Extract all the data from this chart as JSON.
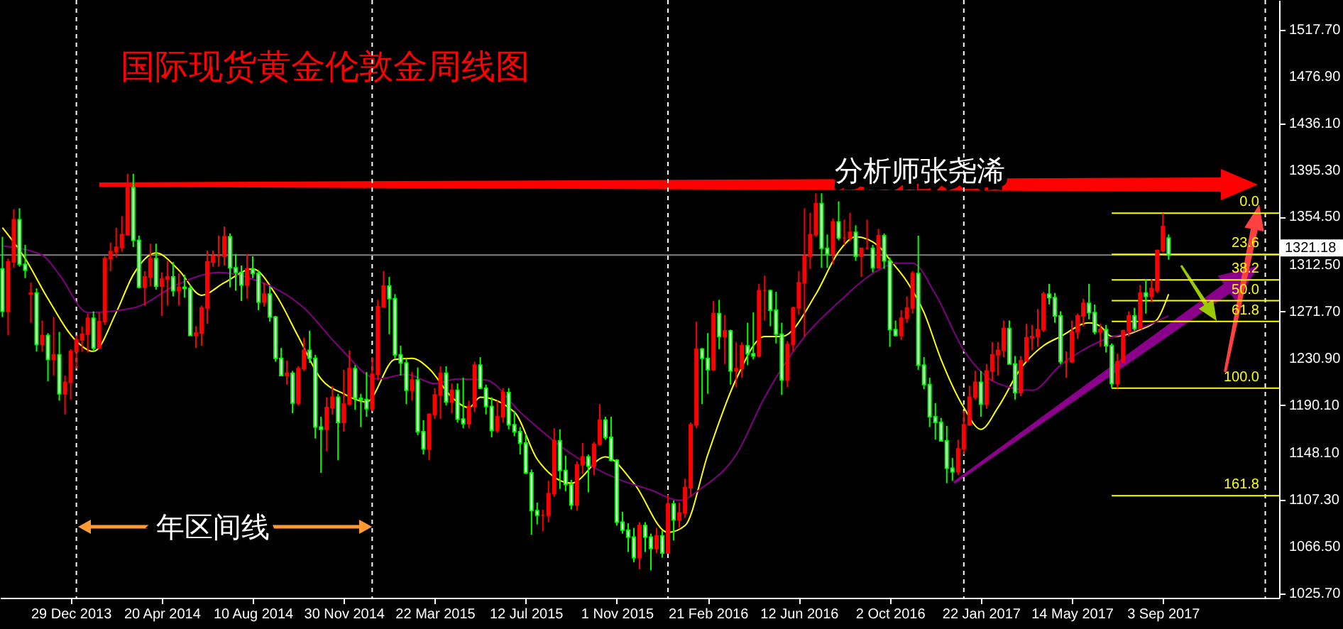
{
  "chart_data": {
    "type": "candlestick",
    "title": "国际现货黄金伦敦金周线图",
    "annotations": [
      "分析师张尧浠",
      "年区间线",
      {
        "text": "0.0",
        "y": 1357.6
      },
      {
        "text": "23.6",
        "y": 1321.7
      },
      {
        "text": "38.2",
        "y": 1299.5
      },
      {
        "text": "50.0",
        "y": 1281.3
      },
      {
        "text": "61.8",
        "y": 1263.2
      },
      {
        "text": "100.0",
        "y": 1205.0
      },
      {
        "text": "161.8",
        "y": 1111.0
      }
    ],
    "x": [
      "2013-10-06",
      "2013-10-13",
      "2013-10-20",
      "2013-10-27",
      "2013-11-03",
      "2013-11-10",
      "2013-11-17",
      "2013-11-24",
      "2013-12-01",
      "2013-12-08",
      "2013-12-15",
      "2013-12-22",
      "2013-12-29",
      "2014-01-05",
      "2014-01-12",
      "2014-01-19",
      "2014-01-26",
      "2014-02-02",
      "2014-02-09",
      "2014-02-16",
      "2014-02-23",
      "2014-03-02",
      "2014-03-09",
      "2014-03-16",
      "2014-03-23",
      "2014-03-30",
      "2014-04-06",
      "2014-04-13",
      "2014-04-20",
      "2014-04-27",
      "2014-05-04",
      "2014-05-11",
      "2014-05-18",
      "2014-05-25",
      "2014-06-01",
      "2014-06-08",
      "2014-06-15",
      "2014-06-22",
      "2014-06-29",
      "2014-07-06",
      "2014-07-13",
      "2014-07-20",
      "2014-07-27",
      "2014-08-03",
      "2014-08-10",
      "2014-08-17",
      "2014-08-24",
      "2014-08-31",
      "2014-09-07",
      "2014-09-14",
      "2014-09-21",
      "2014-09-28",
      "2014-10-05",
      "2014-10-12",
      "2014-10-19",
      "2014-10-26",
      "2014-11-02",
      "2014-11-09",
      "2014-11-16",
      "2014-11-23",
      "2014-11-30",
      "2014-12-07",
      "2014-12-14",
      "2014-12-21",
      "2014-12-28",
      "2015-01-04",
      "2015-01-11",
      "2015-01-18",
      "2015-01-25",
      "2015-02-01",
      "2015-02-08",
      "2015-02-15",
      "2015-02-22",
      "2015-03-01",
      "2015-03-08",
      "2015-03-15",
      "2015-03-22",
      "2015-03-29",
      "2015-04-05",
      "2015-04-12",
      "2015-04-19",
      "2015-04-26",
      "2015-05-03",
      "2015-05-10",
      "2015-05-17",
      "2015-05-24",
      "2015-05-31",
      "2015-06-07",
      "2015-06-14",
      "2015-06-21",
      "2015-06-28",
      "2015-07-05",
      "2015-07-12",
      "2015-07-19",
      "2015-07-26",
      "2015-08-02",
      "2015-08-09",
      "2015-08-16",
      "2015-08-23",
      "2015-08-30",
      "2015-09-06",
      "2015-09-13",
      "2015-09-20",
      "2015-09-27",
      "2015-10-04",
      "2015-10-11",
      "2015-10-18",
      "2015-10-25",
      "2015-11-01",
      "2015-11-08",
      "2015-11-15",
      "2015-11-22",
      "2015-11-29",
      "2015-12-06",
      "2015-12-13",
      "2015-12-20",
      "2015-12-27",
      "2016-01-03",
      "2016-01-10",
      "2016-01-17",
      "2016-01-24",
      "2016-01-31",
      "2016-02-07",
      "2016-02-14",
      "2016-02-21",
      "2016-02-28",
      "2016-03-06",
      "2016-03-13",
      "2016-03-20",
      "2016-03-27",
      "2016-04-03",
      "2016-04-10",
      "2016-04-17",
      "2016-04-24",
      "2016-05-01",
      "2016-05-08",
      "2016-05-15",
      "2016-05-22",
      "2016-05-29",
      "2016-06-05",
      "2016-06-12",
      "2016-06-19",
      "2016-06-26",
      "2016-07-03",
      "2016-07-10",
      "2016-07-17",
      "2016-07-24",
      "2016-07-31",
      "2016-08-07",
      "2016-08-14",
      "2016-08-21",
      "2016-08-28",
      "2016-09-04",
      "2016-09-11",
      "2016-09-18",
      "2016-09-25",
      "2016-10-02",
      "2016-10-09",
      "2016-10-16",
      "2016-10-23",
      "2016-10-30",
      "2016-11-06",
      "2016-11-13",
      "2016-11-20",
      "2016-11-27",
      "2016-12-04",
      "2016-12-11",
      "2016-12-18",
      "2016-12-25",
      "2017-01-01",
      "2017-01-08",
      "2017-01-15",
      "2017-01-22",
      "2017-01-29",
      "2017-02-05",
      "2017-02-12",
      "2017-02-19",
      "2017-02-26",
      "2017-03-05",
      "2017-03-12",
      "2017-03-19",
      "2017-03-26",
      "2017-04-02",
      "2017-04-09",
      "2017-04-16",
      "2017-04-23",
      "2017-04-30",
      "2017-05-07",
      "2017-05-14",
      "2017-05-21",
      "2017-05-28",
      "2017-06-04",
      "2017-06-11",
      "2017-06-18",
      "2017-06-25",
      "2017-07-02",
      "2017-07-09",
      "2017-07-16",
      "2017-07-23",
      "2017-07-30",
      "2017-08-06",
      "2017-08-13",
      "2017-08-20",
      "2017-08-27",
      "2017-09-03",
      "2017-09-10"
    ],
    "ohlc": [
      [
        1309,
        1337,
        1267,
        1272
      ],
      [
        1272,
        1318,
        1251,
        1315
      ],
      [
        1315,
        1361,
        1310,
        1352
      ],
      [
        1352,
        1362,
        1311,
        1313
      ],
      [
        1313,
        1330,
        1301,
        1308
      ],
      [
        1287,
        1297,
        1262,
        1288
      ],
      [
        1288,
        1292,
        1237,
        1243
      ],
      [
        1243,
        1264,
        1237,
        1251
      ],
      [
        1251,
        1253,
        1211,
        1230
      ],
      [
        1230,
        1267,
        1216,
        1234
      ],
      [
        1234,
        1254,
        1194,
        1200
      ],
      [
        1200,
        1216,
        1182,
        1210
      ],
      [
        1210,
        1239,
        1195,
        1237
      ],
      [
        1237,
        1251,
        1222,
        1247
      ],
      [
        1247,
        1259,
        1237,
        1252
      ],
      [
        1252,
        1270,
        1236,
        1266
      ],
      [
        1266,
        1272,
        1237,
        1240
      ],
      [
        1240,
        1271,
        1240,
        1263
      ],
      [
        1263,
        1320,
        1260,
        1318
      ],
      [
        1318,
        1332,
        1307,
        1324
      ],
      [
        1324,
        1345,
        1319,
        1328
      ],
      [
        1328,
        1355,
        1324,
        1339
      ],
      [
        1339,
        1392,
        1338,
        1380
      ],
      [
        1380,
        1392,
        1328,
        1334
      ],
      [
        1334,
        1338,
        1292,
        1293
      ],
      [
        1293,
        1307,
        1277,
        1302
      ],
      [
        1302,
        1331,
        1294,
        1318
      ],
      [
        1318,
        1331,
        1291,
        1294
      ],
      [
        1294,
        1306,
        1268,
        1300
      ],
      [
        1300,
        1316,
        1277,
        1302
      ],
      [
        1302,
        1315,
        1285,
        1290
      ],
      [
        1290,
        1305,
        1277,
        1293
      ],
      [
        1293,
        1304,
        1284,
        1292
      ],
      [
        1292,
        1295,
        1251,
        1251
      ],
      [
        1251,
        1259,
        1240,
        1253
      ],
      [
        1253,
        1277,
        1242,
        1275
      ],
      [
        1275,
        1325,
        1261,
        1315
      ],
      [
        1315,
        1325,
        1311,
        1320
      ],
      [
        1320,
        1338,
        1311,
        1320
      ],
      [
        1320,
        1346,
        1312,
        1337
      ],
      [
        1337,
        1340,
        1293,
        1310
      ],
      [
        1310,
        1322,
        1290,
        1306
      ],
      [
        1306,
        1312,
        1281,
        1295
      ],
      [
        1295,
        1322,
        1283,
        1309
      ],
      [
        1309,
        1320,
        1301,
        1305
      ],
      [
        1305,
        1308,
        1273,
        1280
      ],
      [
        1280,
        1297,
        1276,
        1287
      ],
      [
        1287,
        1294,
        1263,
        1267
      ],
      [
        1267,
        1268,
        1228,
        1231
      ],
      [
        1231,
        1240,
        1216,
        1216
      ],
      [
        1216,
        1229,
        1208,
        1218
      ],
      [
        1218,
        1220,
        1183,
        1192
      ],
      [
        1192,
        1224,
        1190,
        1222
      ],
      [
        1222,
        1249,
        1220,
        1238
      ],
      [
        1238,
        1255,
        1227,
        1231
      ],
      [
        1231,
        1234,
        1161,
        1171
      ],
      [
        1171,
        1180,
        1131,
        1169
      ],
      [
        1169,
        1197,
        1150,
        1188
      ],
      [
        1188,
        1207,
        1182,
        1197
      ],
      [
        1197,
        1200,
        1142,
        1175
      ],
      [
        1175,
        1221,
        1167,
        1191
      ],
      [
        1191,
        1238,
        1190,
        1222
      ],
      [
        1222,
        1225,
        1186,
        1196
      ],
      [
        1196,
        1200,
        1171,
        1195
      ],
      [
        1195,
        1219,
        1180,
        1187
      ],
      [
        1187,
        1232,
        1185,
        1217
      ],
      [
        1217,
        1282,
        1212,
        1276
      ],
      [
        1276,
        1307,
        1276,
        1294
      ],
      [
        1294,
        1302,
        1252,
        1283
      ],
      [
        1283,
        1287,
        1231,
        1234
      ],
      [
        1234,
        1242,
        1216,
        1227
      ],
      [
        1227,
        1231,
        1191,
        1203
      ],
      [
        1203,
        1219,
        1194,
        1212
      ],
      [
        1212,
        1223,
        1164,
        1167
      ],
      [
        1167,
        1177,
        1147,
        1152
      ],
      [
        1152,
        1183,
        1142,
        1182
      ],
      [
        1182,
        1205,
        1178,
        1199
      ],
      [
        1199,
        1224,
        1178,
        1218
      ],
      [
        1218,
        1224,
        1190,
        1193
      ],
      [
        1193,
        1209,
        1183,
        1203
      ],
      [
        1203,
        1209,
        1175,
        1178
      ],
      [
        1178,
        1214,
        1170,
        1174
      ],
      [
        1174,
        1194,
        1170,
        1189
      ],
      [
        1189,
        1228,
        1184,
        1225
      ],
      [
        1225,
        1232,
        1204,
        1205
      ],
      [
        1205,
        1208,
        1182,
        1189
      ],
      [
        1189,
        1197,
        1162,
        1168
      ],
      [
        1168,
        1194,
        1166,
        1180
      ],
      [
        1180,
        1205,
        1175,
        1201
      ],
      [
        1201,
        1205,
        1169,
        1173
      ],
      [
        1173,
        1185,
        1163,
        1167
      ],
      [
        1167,
        1171,
        1147,
        1157
      ],
      [
        1157,
        1165,
        1130,
        1131
      ],
      [
        1131,
        1134,
        1077,
        1098
      ],
      [
        1098,
        1105,
        1086,
        1094
      ],
      [
        1094,
        1099,
        1080,
        1094
      ],
      [
        1094,
        1124,
        1088,
        1113
      ],
      [
        1113,
        1170,
        1110,
        1159
      ],
      [
        1159,
        1169,
        1117,
        1133
      ],
      [
        1133,
        1146,
        1115,
        1121
      ],
      [
        1121,
        1125,
        1099,
        1103
      ],
      [
        1103,
        1141,
        1098,
        1138
      ],
      [
        1138,
        1157,
        1130,
        1145
      ],
      [
        1145,
        1147,
        1114,
        1137
      ],
      [
        1137,
        1158,
        1129,
        1156
      ],
      [
        1156,
        1191,
        1155,
        1177
      ],
      [
        1177,
        1180,
        1160,
        1162
      ],
      [
        1162,
        1180,
        1141,
        1142
      ],
      [
        1142,
        1143,
        1085,
        1088
      ],
      [
        1088,
        1097,
        1078,
        1081
      ],
      [
        1081,
        1087,
        1062,
        1075
      ],
      [
        1075,
        1083,
        1053,
        1057
      ],
      [
        1057,
        1088,
        1047,
        1085
      ],
      [
        1085,
        1088,
        1062,
        1075
      ],
      [
        1075,
        1078,
        1046,
        1065
      ],
      [
        1065,
        1083,
        1061,
        1076
      ],
      [
        1076,
        1081,
        1057,
        1061
      ],
      [
        1061,
        1112,
        1061,
        1104
      ],
      [
        1104,
        1107,
        1072,
        1090
      ],
      [
        1090,
        1105,
        1083,
        1096
      ],
      [
        1096,
        1126,
        1092,
        1118
      ],
      [
        1118,
        1175,
        1110,
        1173
      ],
      [
        1173,
        1263,
        1170,
        1239
      ],
      [
        1239,
        1240,
        1191,
        1231
      ],
      [
        1231,
        1253,
        1200,
        1221
      ],
      [
        1221,
        1281,
        1220,
        1270
      ],
      [
        1270,
        1282,
        1239,
        1250
      ],
      [
        1250,
        1269,
        1226,
        1255
      ],
      [
        1255,
        1256,
        1208,
        1220
      ],
      [
        1220,
        1245,
        1206,
        1222
      ],
      [
        1222,
        1245,
        1214,
        1242
      ],
      [
        1242,
        1262,
        1225,
        1235
      ],
      [
        1235,
        1271,
        1230,
        1233
      ],
      [
        1233,
        1296,
        1232,
        1290
      ],
      [
        1290,
        1303,
        1264,
        1290
      ],
      [
        1290,
        1291,
        1259,
        1273
      ],
      [
        1273,
        1289,
        1244,
        1252
      ],
      [
        1252,
        1262,
        1199,
        1212
      ],
      [
        1212,
        1246,
        1206,
        1243
      ],
      [
        1243,
        1276,
        1237,
        1275
      ],
      [
        1275,
        1307,
        1269,
        1297
      ],
      [
        1297,
        1362,
        1250,
        1320
      ],
      [
        1320,
        1358,
        1309,
        1339
      ],
      [
        1339,
        1375,
        1337,
        1366
      ],
      [
        1366,
        1375,
        1310,
        1327
      ],
      [
        1327,
        1339,
        1310,
        1322
      ],
      [
        1322,
        1353,
        1313,
        1350
      ],
      [
        1350,
        1368,
        1334,
        1336
      ],
      [
        1336,
        1352,
        1330,
        1336
      ],
      [
        1336,
        1358,
        1333,
        1341
      ],
      [
        1341,
        1347,
        1316,
        1320
      ],
      [
        1320,
        1327,
        1302,
        1327
      ],
      [
        1327,
        1352,
        1326,
        1327
      ],
      [
        1327,
        1330,
        1306,
        1310
      ],
      [
        1310,
        1344,
        1310,
        1338
      ],
      [
        1338,
        1340,
        1309,
        1316
      ],
      [
        1316,
        1319,
        1241,
        1256
      ],
      [
        1256,
        1264,
        1250,
        1251
      ],
      [
        1251,
        1273,
        1247,
        1266
      ],
      [
        1266,
        1285,
        1262,
        1275
      ],
      [
        1275,
        1307,
        1270,
        1305
      ],
      [
        1305,
        1338,
        1221,
        1225
      ],
      [
        1225,
        1232,
        1204,
        1208
      ],
      [
        1208,
        1214,
        1171,
        1180
      ],
      [
        1180,
        1192,
        1160,
        1175
      ],
      [
        1175,
        1179,
        1159,
        1159
      ],
      [
        1159,
        1172,
        1122,
        1135
      ],
      [
        1135,
        1144,
        1124,
        1132
      ],
      [
        1132,
        1160,
        1129,
        1152
      ],
      [
        1152,
        1185,
        1147,
        1173
      ],
      [
        1173,
        1207,
        1172,
        1197
      ],
      [
        1197,
        1220,
        1195,
        1210
      ],
      [
        1210,
        1220,
        1180,
        1191
      ],
      [
        1191,
        1226,
        1187,
        1220
      ],
      [
        1220,
        1245,
        1211,
        1234
      ],
      [
        1234,
        1245,
        1216,
        1238
      ],
      [
        1238,
        1264,
        1232,
        1257
      ],
      [
        1257,
        1264,
        1226,
        1226
      ],
      [
        1226,
        1233,
        1195,
        1201
      ],
      [
        1201,
        1233,
        1198,
        1229
      ],
      [
        1229,
        1261,
        1228,
        1249
      ],
      [
        1249,
        1260,
        1238,
        1250
      ],
      [
        1250,
        1274,
        1241,
        1256
      ],
      [
        1256,
        1289,
        1254,
        1287
      ],
      [
        1287,
        1296,
        1278,
        1284
      ],
      [
        1284,
        1288,
        1262,
        1268
      ],
      [
        1268,
        1272,
        1226,
        1228
      ],
      [
        1228,
        1237,
        1214,
        1228
      ],
      [
        1228,
        1264,
        1227,
        1254
      ],
      [
        1254,
        1270,
        1248,
        1268
      ],
      [
        1268,
        1283,
        1259,
        1279
      ],
      [
        1279,
        1296,
        1265,
        1271
      ],
      [
        1271,
        1278,
        1252,
        1254
      ],
      [
        1254,
        1261,
        1241,
        1256
      ],
      [
        1256,
        1260,
        1236,
        1242
      ],
      [
        1242,
        1244,
        1205,
        1209
      ],
      [
        1209,
        1235,
        1205,
        1228
      ],
      [
        1228,
        1256,
        1227,
        1255
      ],
      [
        1255,
        1272,
        1250,
        1268
      ],
      [
        1268,
        1275,
        1255,
        1257
      ],
      [
        1257,
        1295,
        1257,
        1288
      ],
      [
        1288,
        1300,
        1270,
        1285
      ],
      [
        1285,
        1300,
        1280,
        1292
      ],
      [
        1290,
        1326,
        1288,
        1325
      ],
      [
        1325,
        1357.6,
        1323,
        1346
      ],
      [
        1336,
        1339,
        1317,
        1321.18
      ]
    ],
    "series": [
      {
        "type": "line",
        "color": "#ffff00",
        "x": [
          "2013-10-06",
          "2013-11-03",
          "2013-12-01",
          "2014-01-05",
          "2014-01-26",
          "2014-02-23",
          "2014-03-16",
          "2014-04-13",
          "2014-05-11",
          "2014-06-08",
          "2014-07-06",
          "2014-08-10",
          "2014-09-07",
          "2014-10-05",
          "2014-11-02",
          "2014-11-30",
          "2014-12-28",
          "2015-02-01",
          "2015-02-22",
          "2015-03-15",
          "2015-04-12",
          "2015-05-03",
          "2015-05-17",
          "2015-06-28",
          "2015-07-26",
          "2015-09-06",
          "2015-10-18",
          "2015-11-22",
          "2016-01-03",
          "2016-01-24",
          "2016-02-21",
          "2016-03-27",
          "2016-05-01",
          "2016-05-22",
          "2016-07-03",
          "2016-07-31",
          "2016-08-21",
          "2016-09-18",
          "2016-10-02",
          "2016-10-23",
          "2016-11-13",
          "2016-12-04",
          "2017-01-01",
          "2017-01-22",
          "2017-02-12",
          "2017-03-12",
          "2017-04-09",
          "2017-04-30",
          "2017-06-04",
          "2017-06-18",
          "2017-07-02",
          "2017-08-06",
          "2017-08-27",
          "2017-09-10"
        ],
        "values": [
          1345,
          1318,
          1283,
          1246,
          1237,
          1271,
          1304,
          1323,
          1308,
          1286,
          1297,
          1309,
          1287,
          1250,
          1213,
          1200,
          1193,
          1230,
          1231,
          1222,
          1197,
          1188,
          1197,
          1184,
          1143,
          1122,
          1145,
          1122,
          1079,
          1085,
          1147,
          1213,
          1250,
          1250,
          1287,
          1324,
          1337,
          1329,
          1317,
          1298,
          1271,
          1230,
          1188,
          1169,
          1188,
          1222,
          1242,
          1250,
          1262,
          1259,
          1250,
          1256,
          1265,
          1287
        ]
      },
      {
        "type": "line",
        "color": "#800080",
        "x": [
          "2013-10-06",
          "2013-11-24",
          "2013-12-15",
          "2014-01-19",
          "2014-03-16",
          "2014-05-11",
          "2014-06-29",
          "2014-08-10",
          "2014-10-12",
          "2014-11-23",
          "2015-01-11",
          "2015-02-15",
          "2015-03-22",
          "2015-04-19",
          "2015-05-24",
          "2015-07-05",
          "2015-08-30",
          "2015-11-01",
          "2015-12-13",
          "2016-01-17",
          "2016-02-14",
          "2016-03-27",
          "2016-05-01",
          "2016-06-19",
          "2016-07-31",
          "2016-09-18",
          "2016-10-09",
          "2016-10-30",
          "2016-11-27",
          "2017-01-01",
          "2017-02-12",
          "2017-03-26",
          "2017-04-30",
          "2017-06-18",
          "2017-07-30",
          "2017-09-10"
        ],
        "values": [
          1329,
          1321,
          1304,
          1271,
          1275,
          1296,
          1306,
          1300,
          1275,
          1242,
          1213,
          1217,
          1209,
          1213,
          1212,
          1184,
          1151,
          1126,
          1116,
          1107,
          1118,
          1147,
          1197,
          1250,
          1280,
          1308,
          1314,
          1314,
          1287,
          1238,
          1209,
          1203,
          1225,
          1246,
          1255,
          1268
        ]
      }
    ],
    "xlim": [
      "2013-10-03",
      "2018-01-24"
    ],
    "xticks": [
      {
        "value": "2013-12-29",
        "label": "29 Dec 2013"
      },
      {
        "value": "2014-04-20",
        "label": "20 Apr 2014"
      },
      {
        "value": "2014-08-10",
        "label": "10 Aug 2014"
      },
      {
        "value": "2014-11-30",
        "label": "30 Nov 2014"
      },
      {
        "value": "2015-03-22",
        "label": "22 Mar 2015"
      },
      {
        "value": "2015-07-12",
        "label": "12 Jul 2015"
      },
      {
        "value": "2015-11-01",
        "label": "1 Nov 2015"
      },
      {
        "value": "2016-02-21",
        "label": "21 Feb 2016"
      },
      {
        "value": "2016-06-12",
        "label": "12 Jun 2016"
      },
      {
        "value": "2016-10-02",
        "label": "2 Oct 2016"
      },
      {
        "value": "2017-01-22",
        "label": "22 Jan 2017"
      },
      {
        "value": "2017-05-14",
        "label": "14 May 2017"
      },
      {
        "value": "2017-09-03",
        "label": "3 Sep 2017"
      }
    ],
    "ylim": [
      1022.0,
      1543.7
    ],
    "yticks": [
      {
        "value": 1517.7,
        "label": "1517.70"
      },
      {
        "value": 1476.9,
        "label": "1476.90"
      },
      {
        "value": 1436.1,
        "label": "1436.10"
      },
      {
        "value": 1395.3,
        "label": "1395.30"
      },
      {
        "value": 1354.5,
        "label": "1354.50"
      },
      {
        "value": 1312.5,
        "label": "1312.50"
      },
      {
        "value": 1271.7,
        "label": "1271.70"
      },
      {
        "value": 1230.9,
        "label": "1230.90"
      },
      {
        "value": 1190.1,
        "label": "1190.10"
      },
      {
        "value": 1148.1,
        "label": "1148.10"
      },
      {
        "value": 1107.3,
        "label": "1107.30"
      },
      {
        "value": 1066.5,
        "label": "1066.50"
      },
      {
        "value": 1025.7,
        "label": "1025.70"
      }
    ],
    "ref_lines": [
      {
        "axis": "x",
        "value": "2014-01-05",
        "color": "#ffffff",
        "line_style": "dashed"
      },
      {
        "axis": "x",
        "value": "2015-01-04",
        "color": "#ffffff",
        "line_style": "dashed"
      },
      {
        "axis": "x",
        "value": "2016-01-03",
        "color": "#ffffff",
        "line_style": "dashed"
      },
      {
        "axis": "x",
        "value": "2017-01-01",
        "color": "#ffffff",
        "line_style": "dashed"
      },
      {
        "axis": "x",
        "value": "2018-01-07",
        "color": "#ffffff",
        "line_style": "dashed"
      },
      {
        "axis": "y",
        "value": 1321.18,
        "label": "1321.18",
        "color": "#808080"
      },
      {
        "axis": "y",
        "value": 1357.6,
        "color": "#ffff00"
      },
      {
        "axis": "y",
        "value": 1321.7,
        "color": "#ffff00"
      },
      {
        "axis": "y",
        "value": 1299.5,
        "color": "#ffff00"
      },
      {
        "axis": "y",
        "value": 1281.3,
        "color": "#ffff00"
      },
      {
        "axis": "y",
        "value": 1263.2,
        "color": "#ffff00"
      },
      {
        "axis": "y",
        "value": 1205.0,
        "color": "#ffff00"
      },
      {
        "axis": "y",
        "value": 1111.0,
        "color": "#ffff00"
      }
    ]
  }
}
